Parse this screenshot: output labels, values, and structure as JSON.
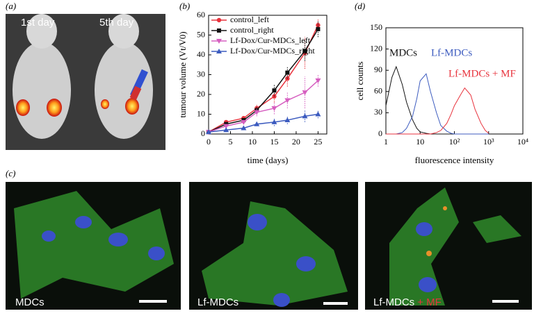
{
  "panel_labels": [
    "(a)",
    "(b)",
    "(c)",
    "(d)"
  ],
  "panel_a": {
    "labels": [
      "1st day",
      "5th day"
    ]
  },
  "panel_c": {
    "labels": [
      "MDCs",
      "Lf-MDCs",
      "Lf-MDCs"
    ],
    "extra_label": "+ MF"
  },
  "chart_data": [
    {
      "type": "line",
      "xlabel": "time (days)",
      "ylabel": "tumour volume (Vt/V0)",
      "x": [
        0,
        4,
        8,
        11,
        15,
        18,
        22,
        25
      ],
      "series": [
        {
          "name": "control_left",
          "color": "#e8323c",
          "marker": "circle",
          "values": [
            1,
            6,
            8,
            13,
            19,
            28,
            41,
            55
          ],
          "errors": [
            0,
            1,
            1,
            2,
            3,
            4,
            8,
            3
          ]
        },
        {
          "name": "control_right",
          "color": "#111111",
          "marker": "square",
          "values": [
            1,
            5,
            7,
            12,
            22,
            31,
            42,
            53
          ],
          "errors": [
            0,
            1,
            1,
            2,
            3,
            3,
            5,
            4
          ]
        },
        {
          "name": "Lf-Dox/Cur-MDCs_left",
          "color": "#d65fc0",
          "marker": "triangle-down",
          "values": [
            1,
            4,
            6,
            11,
            13,
            17,
            21,
            27
          ],
          "errors": [
            0,
            1,
            1,
            2,
            3,
            4,
            8,
            3
          ]
        },
        {
          "name": "Lf-Dox/Cur-MDCs_right",
          "color": "#3c5bbf",
          "marker": "triangle-up",
          "values": [
            1,
            2,
            3,
            5,
            6,
            7,
            9,
            10
          ],
          "errors": [
            0,
            1,
            1,
            1,
            2,
            2,
            3,
            2
          ]
        }
      ],
      "xlim": [
        0,
        27
      ],
      "ylim": [
        0,
        60
      ],
      "xticks": [
        0,
        5,
        10,
        15,
        20,
        25
      ],
      "yticks": [
        0,
        10,
        20,
        30,
        40,
        50,
        60
      ],
      "legend": "upper left"
    },
    {
      "type": "line",
      "xlabel": "fluorescence intensity",
      "ylabel": "cell counts",
      "xlog": true,
      "x": [
        1,
        1.5,
        2,
        3,
        4,
        6,
        8,
        10,
        15,
        20,
        30,
        40,
        60,
        80,
        100,
        150,
        200,
        300,
        400,
        600,
        800,
        1000
      ],
      "series": [
        {
          "name": "MDCs",
          "color": "#111111",
          "values": [
            40,
            80,
            95,
            70,
            45,
            20,
            8,
            3,
            1,
            0,
            0,
            0,
            0,
            0,
            0,
            0,
            0,
            0,
            0,
            0,
            0,
            0
          ]
        },
        {
          "name": "Lf-MDCs",
          "color": "#3c5bbf",
          "values": [
            0,
            0,
            0,
            2,
            8,
            25,
            50,
            75,
            85,
            60,
            30,
            12,
            4,
            1,
            0,
            0,
            0,
            0,
            0,
            0,
            0,
            0
          ]
        },
        {
          "name": "Lf-MDCs + MF",
          "color": "#e8323c",
          "values": [
            0,
            0,
            0,
            0,
            0,
            0,
            0,
            0,
            0,
            0,
            2,
            5,
            15,
            28,
            40,
            55,
            65,
            55,
            35,
            15,
            5,
            1
          ]
        }
      ],
      "xlim": [
        1,
        10000
      ],
      "ylim": [
        0,
        150
      ],
      "xticks": [
        1,
        10,
        {
          "value": 100,
          "label": "10²"
        },
        {
          "value": 1000,
          "label": "10³"
        },
        {
          "value": 10000,
          "label": "10⁴"
        }
      ],
      "yticks": [
        0,
        30,
        60,
        90,
        120,
        150
      ],
      "legend": "inline"
    }
  ]
}
